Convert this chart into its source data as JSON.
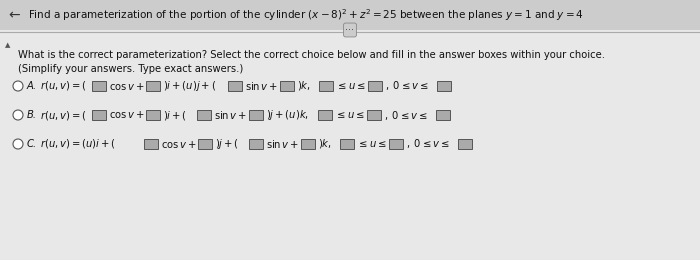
{
  "bg_color": "#e8e8e8",
  "text_color": "#111111",
  "title_text": "Find a parameterization of the portion of the cylinder $(x-8)^{2}+z^{2}=25$ between the planes $y=1$ and $y=4$",
  "question_line1": "What is the correct parameterization? Select the correct choice below and fill in the answer boxes within your choice.",
  "question_line2": "(Simplify your answers. Type exact answers.)",
  "box_facecolor": "#aaaaaa",
  "box_edgecolor": "#555555",
  "separator_color": "#aaaaaa",
  "circle_facecolor": "#ffffff",
  "circle_edgecolor": "#555555",
  "fs_title": 7.5,
  "fs_text": 7.2,
  "fs_option": 7.2
}
